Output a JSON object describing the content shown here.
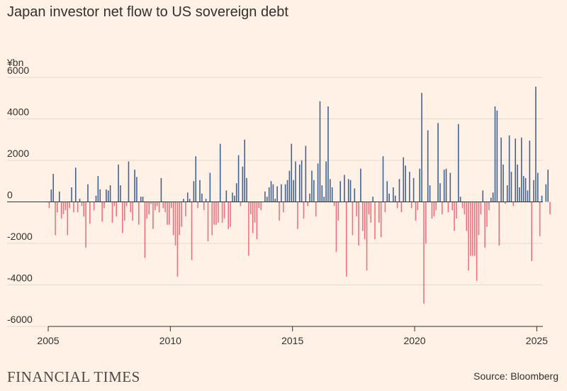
{
  "header": {
    "title": "Japan investor net flow to US sovereign debt"
  },
  "footer": {
    "logo": "FINANCIAL TIMES",
    "source": "Source: Bloomberg"
  },
  "colors": {
    "positive": "#3f6294",
    "negative": "#ef6f7f",
    "gridline": "#e5d9ce",
    "zero_line": "#33302e"
  },
  "chart_data": {
    "type": "bar",
    "title": "Japan investor net flow to US sovereign debt",
    "ylabel": "¥bn",
    "xlabel": "",
    "ylim": [
      -6000,
      6000
    ],
    "xlim": [
      2005.0,
      2025.25
    ],
    "y_ticks": [
      {
        "value": -6000,
        "label": "-6000"
      },
      {
        "value": -4000,
        "label": "-4000"
      },
      {
        "value": -2000,
        "label": "-2000"
      },
      {
        "value": 0,
        "label": "0"
      },
      {
        "value": 2000,
        "label": "2000"
      },
      {
        "value": 4000,
        "label": "4000"
      },
      {
        "value": 6000,
        "label": "6000"
      }
    ],
    "x_ticks": [
      {
        "value": 2005,
        "label": "2005"
      },
      {
        "value": 2010,
        "label": "2010"
      },
      {
        "value": 2015,
        "label": "2015"
      },
      {
        "value": 2020,
        "label": "2020"
      },
      {
        "value": 2025,
        "label": "2025"
      }
    ],
    "frequency": "monthly",
    "start": "2005-01",
    "unit": "¥bn",
    "series": [
      {
        "name": "Net flow",
        "values": [
          -300,
          600,
          1350,
          -1600,
          -500,
          500,
          -800,
          -600,
          -400,
          -1600,
          -300,
          700,
          -500,
          1650,
          -500,
          150,
          -200,
          -700,
          -2200,
          850,
          -1050,
          0,
          -400,
          300,
          1250,
          600,
          -950,
          -300,
          600,
          550,
          800,
          -1000,
          -200,
          -700,
          1800,
          800,
          -1500,
          -900,
          -200,
          1950,
          -500,
          -900,
          1550,
          1200,
          -1100,
          250,
          250,
          -2700,
          -800,
          -600,
          -100,
          -1300,
          -400,
          -200,
          -500,
          1150,
          -300,
          -500,
          -1100,
          -1100,
          -300,
          -1600,
          -2100,
          -3600,
          -1600,
          -1200,
          150,
          -700,
          450,
          150,
          -2800,
          1000,
          2200,
          -300,
          1050,
          400,
          -400,
          150,
          -1900,
          1400,
          -1600,
          -1100,
          -1100,
          -1000,
          2800,
          -1000,
          -800,
          550,
          -1300,
          -1200,
          450,
          300,
          900,
          2250,
          -200,
          1700,
          3000,
          1150,
          -2600,
          -600,
          -1500,
          -1000,
          -1800,
          -300,
          -400,
          0,
          500,
          250,
          700,
          1000,
          850,
          150,
          750,
          -900,
          850,
          -500,
          850,
          1050,
          1500,
          2800,
          1050,
          1950,
          -1300,
          1800,
          2000,
          -800,
          2700,
          -200,
          400,
          1500,
          1050,
          -700,
          1850,
          4850,
          800,
          250,
          1950,
          4600,
          1100,
          700,
          -200,
          -2400,
          -900,
          1000,
          0,
          1300,
          -3600,
          1100,
          1050,
          -1600,
          650,
          -700,
          -2100,
          1600,
          -1400,
          -1800,
          -3300,
          -600,
          -1000,
          250,
          -1800,
          0,
          -1000,
          -1700,
          2200,
          -500,
          1000,
          400,
          0,
          700,
          300,
          -300,
          1100,
          -500,
          2150,
          1750,
          0,
          1450,
          -300,
          1150,
          -900,
          -400,
          1600,
          5250,
          -4900,
          -2000,
          3450,
          800,
          -800,
          -700,
          -400,
          3800,
          900,
          -600,
          1550,
          1600,
          -500,
          1400,
          -400,
          -1400,
          -800,
          3750,
          250,
          -300,
          -600,
          -1400,
          -3300,
          -2600,
          -2600,
          -2600,
          -3800,
          -1600,
          -600,
          550,
          -2200,
          -1200,
          -400,
          200,
          450,
          4600,
          4400,
          -2100,
          3100,
          1800,
          -100,
          800,
          3200,
          1450,
          -200,
          3050,
          1800,
          700,
          3100,
          1250,
          1150,
          550,
          2950,
          -2850,
          1050,
          5550,
          1400,
          -1650,
          300,
          0,
          850,
          1550,
          -600
        ]
      }
    ]
  }
}
